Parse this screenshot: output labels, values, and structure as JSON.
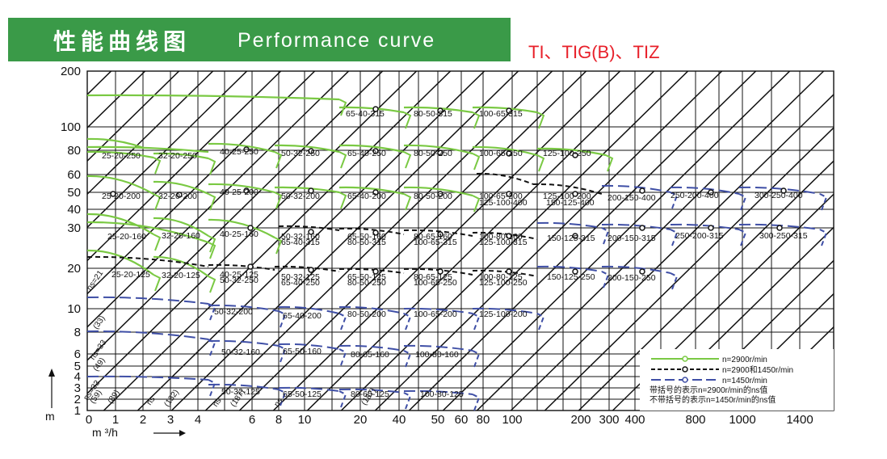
{
  "banner": {
    "title_cn": "性能曲线图",
    "title_en": "Performance curve"
  },
  "model_title": "TI、TIG(B)、TIZ",
  "colors": {
    "banner": "#3a9a48",
    "green": "#7ac943",
    "black": "#111111",
    "blue": "#3f4fa6",
    "title_red": "#e8202a"
  },
  "chart_data": {
    "type": "line",
    "x_ticks": [
      "0",
      "1",
      "2",
      "3",
      "4",
      "6",
      "8",
      "10",
      "20",
      "40",
      "50",
      "60",
      "80",
      "100",
      "200",
      "300",
      "400",
      "800",
      "1000",
      "1400"
    ],
    "y_ticks": [
      "200",
      "100",
      "80",
      "60",
      "50",
      "40",
      "30",
      "20",
      "10",
      "8",
      "6",
      "5",
      "4",
      "3",
      "2",
      "1"
    ],
    "xlabel": "m ³/h",
    "ylabel": "m",
    "legend": [
      {
        "text": "n=2900r/min",
        "style": "green"
      },
      {
        "text": "n=2900和1450r/min",
        "style": "black"
      },
      {
        "text": "n=1450r/min",
        "style": "blue"
      }
    ],
    "legend_notes": [
      "带括号的表示n=2900r/min的ns值",
      "不带括号的表示n=1450r/min的ns值"
    ],
    "pump_labels": [
      "65-40-315",
      "80-50-315",
      "100-65-315",
      "25-20-250",
      "32-20-250",
      "40-25-250",
      "50-32-250",
      "65-40-250",
      "80-50-250",
      "100-65-250",
      "125-100-250",
      "25-20-200",
      "32-20-200",
      "40-25-200",
      "50-32-200",
      "65-40-200",
      "80-50-200",
      "100-65-200",
      "125-100-400",
      "125-100-200",
      "150-125-400",
      "200-150-400",
      "250-200-400",
      "300-250-400",
      "25-20-160",
      "32-20-160",
      "40-25-160",
      "50-32-160",
      "65-40-315",
      "65-50-160",
      "80-50-315",
      "80-65-160",
      "100-65-315",
      "100-80-160",
      "125-100-315",
      "150-125-315",
      "200-150-315",
      "250-200-315",
      "300-250-315",
      "25-20-125",
      "32-20-125",
      "40-25-125",
      "50-32-250",
      "50-32-125",
      "65-40-250",
      "65-50-125",
      "80-50-250",
      "80-65-125",
      "100-65-250",
      "100-80-125",
      "125-100-250",
      "150-125-250",
      "200-150-250",
      "50-32-200",
      "65-40-200",
      "80-50-200",
      "100-65-200",
      "125-100-200",
      "50-32-160",
      "65-50-160",
      "80-65-160",
      "100-80-160",
      "50-32-125",
      "65-50-125",
      "80-65-125",
      "100-80-125"
    ],
    "ns_labels": [
      "ns=21",
      "(33)",
      "ns=33",
      "(49)",
      "ns=33",
      "(59)",
      "(89)",
      "ns",
      "(132)",
      "ns",
      "(187)",
      "ns",
      "(187)"
    ]
  }
}
